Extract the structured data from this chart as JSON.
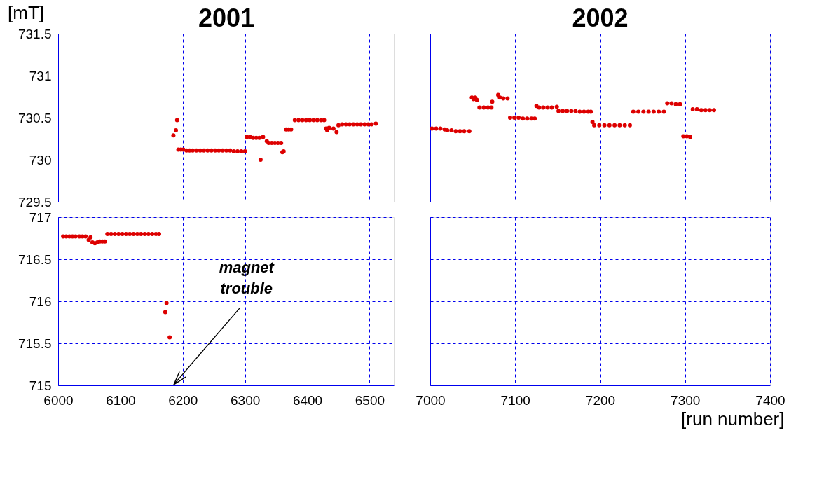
{
  "chart_data": [
    {
      "type": "scatter",
      "title": "2001",
      "ylabel": "[mT]",
      "xlim": [
        6000,
        6540
      ],
      "xticks": [
        6000,
        6100,
        6200,
        6300,
        6400,
        6500
      ],
      "ylim": [
        729.5,
        731.5
      ],
      "yticks": [
        729.5,
        730,
        730.5,
        731,
        731.5
      ],
      "grid": true,
      "marker": "circle",
      "tick_labels": "y",
      "series": [
        {
          "color": "#dd0000",
          "x": [
            6185,
            6189,
            6191,
            6193,
            6197,
            6201,
            6206,
            6211,
            6216,
            6222,
            6228,
            6234,
            6240,
            6246,
            6252,
            6258,
            6264,
            6270,
            6276,
            6282,
            6288,
            6294,
            6300,
            6303,
            6308,
            6313,
            6318,
            6323,
            6329,
            6325,
            6335,
            6338,
            6343,
            6348,
            6353,
            6358,
            6360,
            6362,
            6366,
            6370,
            6374,
            6380,
            6386,
            6392,
            6398,
            6404,
            6410,
            6416,
            6422,
            6427,
            6430,
            6432,
            6435,
            6442,
            6447,
            6450,
            6456,
            6462,
            6468,
            6474,
            6480,
            6486,
            6492,
            6498,
            6503,
            6510
          ],
          "values": [
            730.29,
            730.35,
            730.47,
            730.12,
            730.12,
            730.12,
            730.11,
            730.11,
            730.11,
            730.11,
            730.11,
            730.11,
            730.11,
            730.11,
            730.11,
            730.11,
            730.11,
            730.11,
            730.11,
            730.1,
            730.1,
            730.1,
            730.1,
            730.27,
            730.27,
            730.26,
            730.26,
            730.26,
            730.27,
            730.0,
            730.22,
            730.2,
            730.2,
            730.2,
            730.2,
            730.2,
            730.09,
            730.1,
            730.36,
            730.36,
            730.36,
            730.47,
            730.47,
            730.47,
            730.47,
            730.47,
            730.47,
            730.47,
            730.47,
            730.47,
            730.37,
            730.35,
            730.38,
            730.37,
            730.33,
            730.41,
            730.42,
            730.42,
            730.42,
            730.42,
            730.42,
            730.42,
            730.42,
            730.42,
            730.42,
            730.43
          ]
        }
      ]
    },
    {
      "type": "scatter",
      "title": "2002",
      "xlim": [
        7000,
        7400
      ],
      "xticks": [
        7000,
        7100,
        7200,
        7300,
        7400
      ],
      "ylim": [
        729.5,
        731.5
      ],
      "yticks": [
        729.5,
        730,
        730.5,
        731,
        731.5
      ],
      "grid": true,
      "marker": "circle",
      "tick_labels": false,
      "series": [
        {
          "color": "#dd0000",
          "x": [
            7002,
            7007,
            7012,
            7017,
            7020,
            7025,
            7030,
            7035,
            7040,
            7046,
            7049,
            7051,
            7053,
            7055,
            7058,
            7063,
            7068,
            7072,
            7073,
            7080,
            7082,
            7086,
            7091,
            7094,
            7099,
            7104,
            7109,
            7114,
            7119,
            7123,
            7125,
            7128,
            7133,
            7138,
            7143,
            7149,
            7151,
            7156,
            7161,
            7166,
            7171,
            7176,
            7181,
            7186,
            7189,
            7191,
            7193,
            7199,
            7205,
            7211,
            7217,
            7223,
            7229,
            7235,
            7239,
            7245,
            7251,
            7257,
            7263,
            7269,
            7275,
            7279,
            7284,
            7289,
            7294,
            7298,
            7302,
            7306,
            7309,
            7314,
            7319,
            7324,
            7329,
            7334
          ],
          "values": [
            730.37,
            730.37,
            730.37,
            730.36,
            730.35,
            730.35,
            730.34,
            730.34,
            730.34,
            730.34,
            730.74,
            730.72,
            730.74,
            730.71,
            730.62,
            730.62,
            730.62,
            730.62,
            730.69,
            730.77,
            730.74,
            730.73,
            730.73,
            730.5,
            730.5,
            730.5,
            730.49,
            730.49,
            730.49,
            730.49,
            730.64,
            730.62,
            730.62,
            730.62,
            730.62,
            730.63,
            730.58,
            730.58,
            730.58,
            730.58,
            730.58,
            730.57,
            730.57,
            730.57,
            730.57,
            730.45,
            730.41,
            730.41,
            730.41,
            730.41,
            730.41,
            730.41,
            730.41,
            730.41,
            730.57,
            730.57,
            730.57,
            730.57,
            730.57,
            730.57,
            730.57,
            730.67,
            730.67,
            730.66,
            730.66,
            730.28,
            730.28,
            730.27,
            730.6,
            730.6,
            730.59,
            730.59,
            730.59,
            730.59
          ]
        }
      ]
    },
    {
      "type": "scatter",
      "xlim": [
        6000,
        6540
      ],
      "xticks": [
        6000,
        6100,
        6200,
        6300,
        6400,
        6500
      ],
      "ylim": [
        715,
        717
      ],
      "yticks": [
        715,
        715.5,
        716,
        716.5,
        717
      ],
      "grid": true,
      "marker": "circle",
      "annotations": [
        "magnet trouble"
      ],
      "series": [
        {
          "color": "#dd0000",
          "x": [
            6008,
            6013,
            6018,
            6023,
            6028,
            6034,
            6039,
            6044,
            6049,
            6052,
            6055,
            6059,
            6063,
            6067,
            6071,
            6075,
            6079,
            6085,
            6091,
            6097,
            6103,
            6109,
            6115,
            6121,
            6127,
            6133,
            6139,
            6145,
            6151,
            6157,
            6162,
            6172,
            6174,
            6179
          ],
          "values": [
            716.77,
            716.77,
            716.77,
            716.77,
            716.77,
            716.77,
            716.77,
            716.77,
            716.73,
            716.76,
            716.7,
            716.69,
            716.7,
            716.71,
            716.71,
            716.71,
            716.8,
            716.8,
            716.8,
            716.8,
            716.8,
            716.8,
            716.8,
            716.8,
            716.8,
            716.8,
            716.8,
            716.8,
            716.8,
            716.8,
            716.8,
            715.87,
            715.98,
            715.57
          ]
        }
      ]
    },
    {
      "type": "scatter",
      "xlabel": "[run number]",
      "xlim": [
        7000,
        7400
      ],
      "xticks": [
        7000,
        7100,
        7200,
        7300,
        7400
      ],
      "ylim": [
        715,
        717
      ],
      "yticks": [
        715,
        715.5,
        716,
        716.5,
        717
      ],
      "grid": true,
      "tick_labels": "x"
    }
  ]
}
